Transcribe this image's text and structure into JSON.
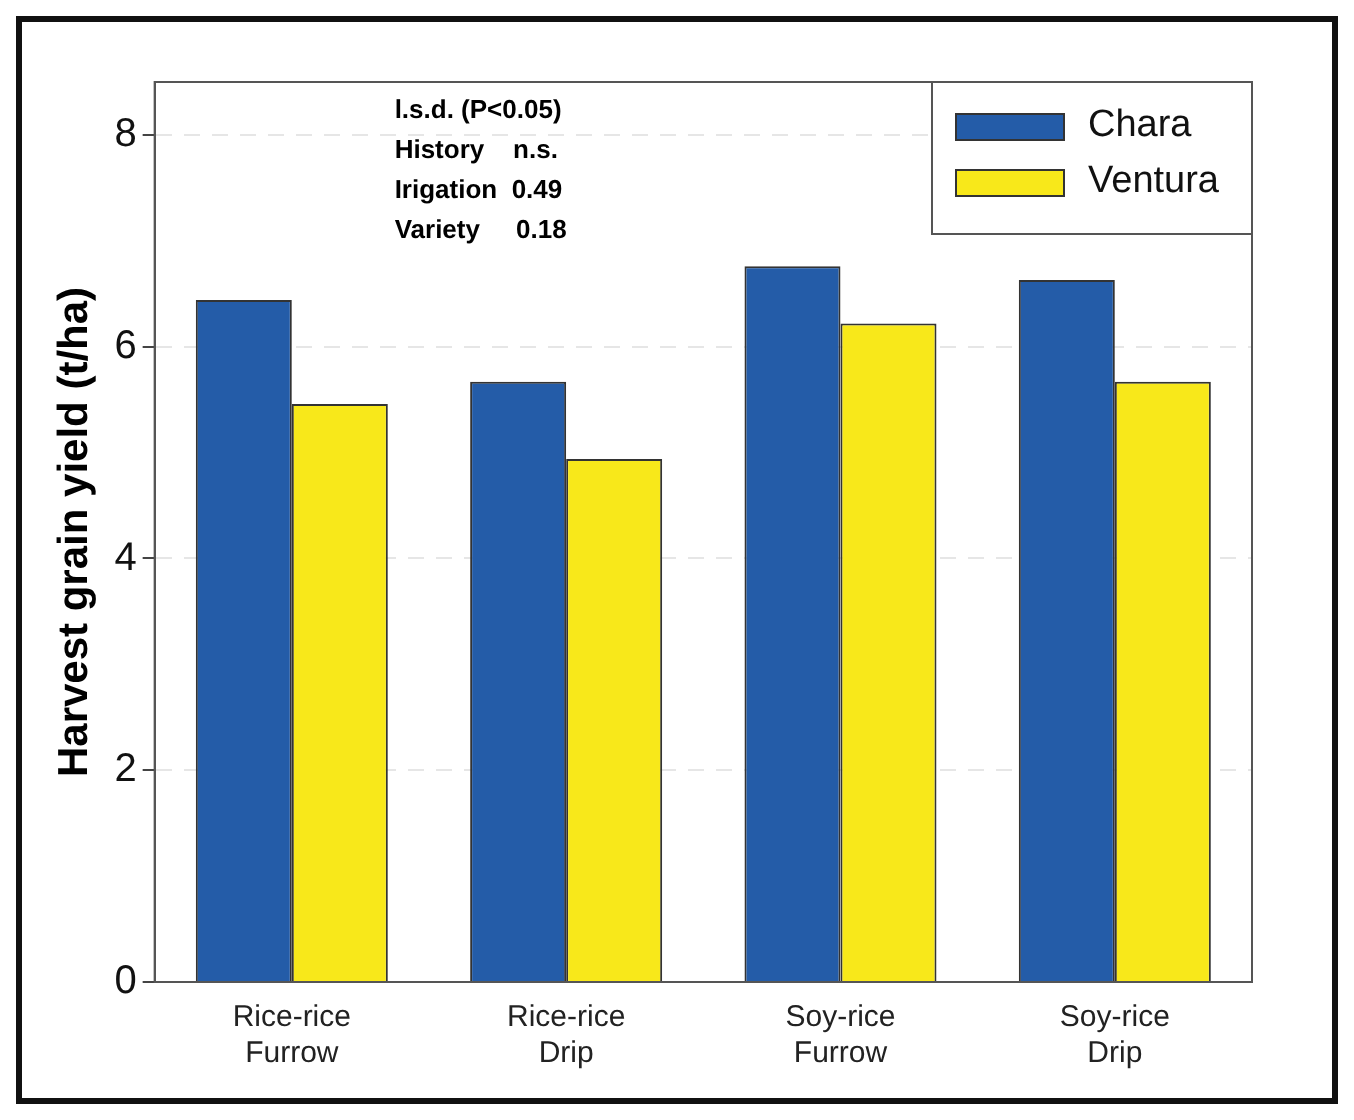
{
  "chart_data": {
    "type": "bar",
    "ylabel": "Harvest grain yield (t/ha)",
    "categories": [
      "Rice-rice Furrow",
      "Rice-rice Drip",
      "Soy-rice Furrow",
      "Soy-rice Drip"
    ],
    "series": [
      {
        "name": "Chara",
        "color": "#245ca8",
        "values": [
          6.44,
          5.67,
          6.76,
          6.63
        ]
      },
      {
        "name": "Ventura",
        "color": "#f8e81a",
        "values": [
          5.46,
          4.94,
          6.22,
          5.67
        ]
      }
    ],
    "ylim": [
      0,
      8.5
    ],
    "yticks": [
      0,
      2,
      4,
      6,
      8
    ],
    "grid": "y",
    "legend": "top right",
    "annotations": [
      "l.s.d. (P<0.05)",
      "History    n.s.",
      "Irigation  0.49",
      "Variety     0.18"
    ]
  }
}
